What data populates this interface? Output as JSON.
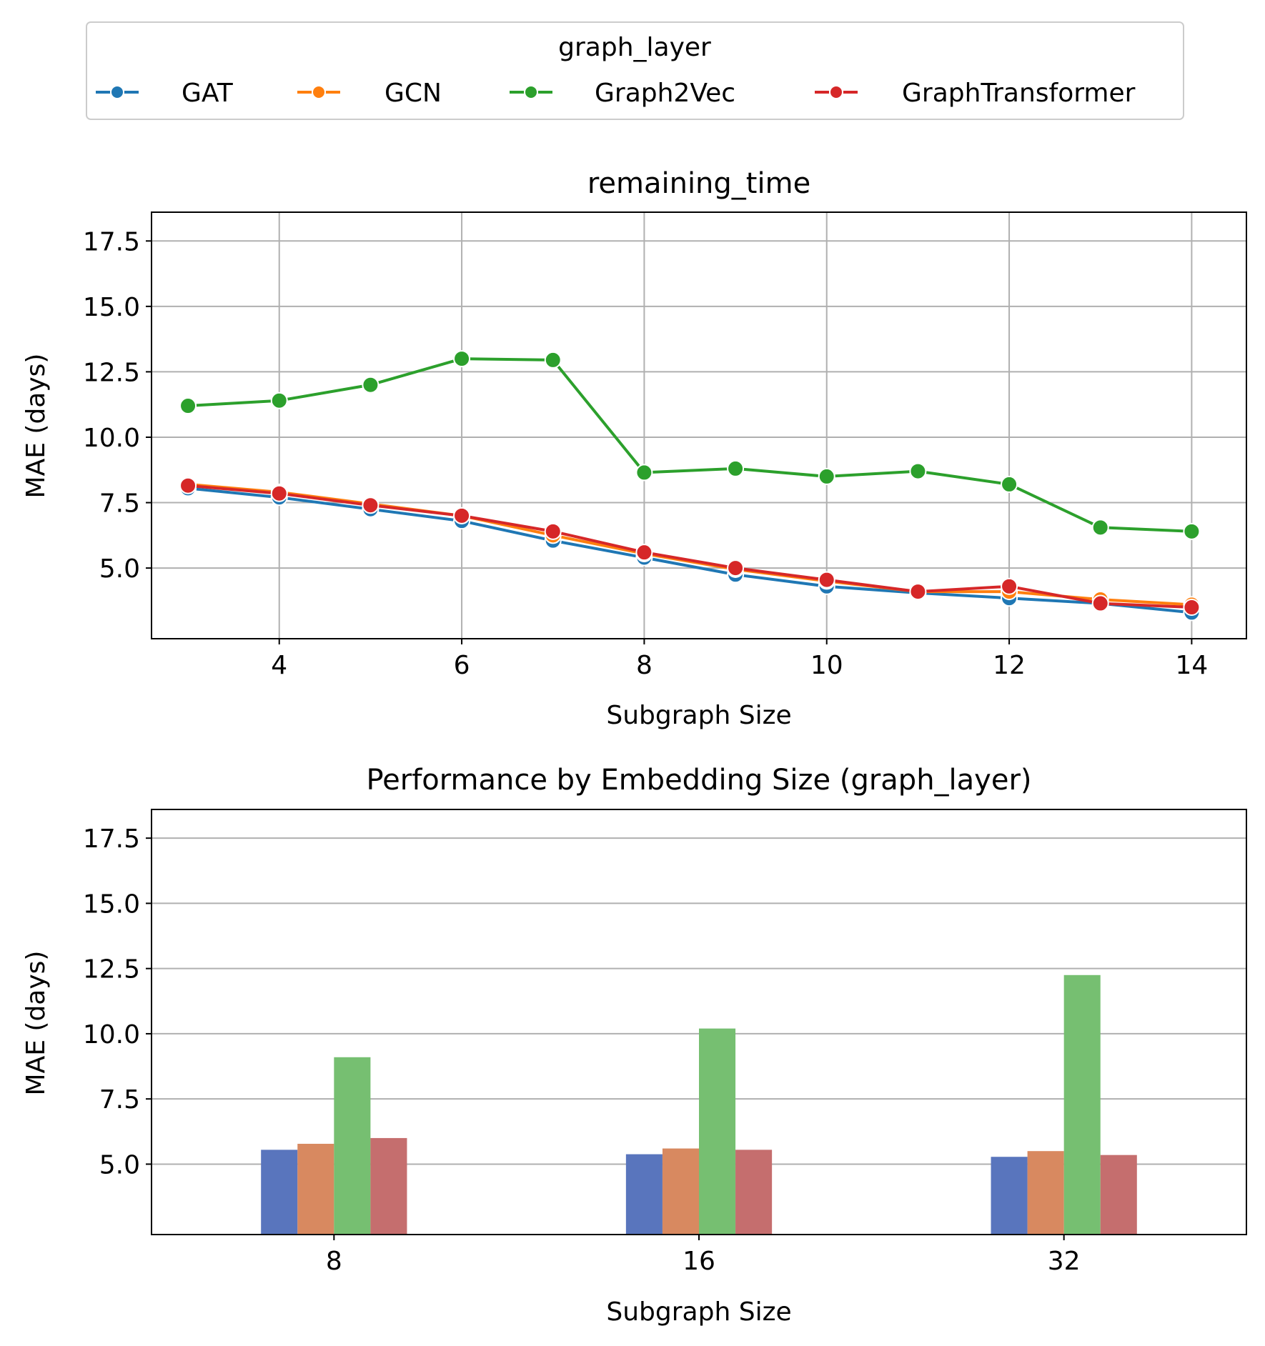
{
  "legend": {
    "title": "graph_layer",
    "entries": [
      {
        "label": "GAT",
        "color": "#1f77b4"
      },
      {
        "label": "GCN",
        "color": "#ff7f0e"
      },
      {
        "label": "Graph2Vec",
        "color": "#2ca02c"
      },
      {
        "label": "GraphTransformer",
        "color": "#d62728"
      }
    ]
  },
  "chart_data": [
    {
      "type": "line",
      "title": "remaining_time",
      "xlabel": "Subgraph Size",
      "ylabel": "MAE (days)",
      "xlim": [
        2.6,
        14.6
      ],
      "ylim": [
        2.3,
        18.6
      ],
      "xticks": [
        "4",
        "6",
        "8",
        "10",
        "12",
        "14"
      ],
      "yticks": [
        "5.0",
        "7.5",
        "10.0",
        "12.5",
        "15.0",
        "17.5"
      ],
      "grid": "both",
      "x": [
        3,
        4,
        5,
        6,
        7,
        8,
        9,
        10,
        11,
        12,
        13,
        14
      ],
      "series": [
        {
          "name": "GAT",
          "color": "#1f77b4",
          "values": [
            8.05,
            7.7,
            7.25,
            6.8,
            6.05,
            5.4,
            4.75,
            4.3,
            4.05,
            3.85,
            3.65,
            3.3
          ]
        },
        {
          "name": "GCN",
          "color": "#ff7f0e",
          "values": [
            8.2,
            7.9,
            7.45,
            7.0,
            6.25,
            5.55,
            4.95,
            4.5,
            4.1,
            4.1,
            3.8,
            3.6
          ]
        },
        {
          "name": "Graph2Vec",
          "color": "#2ca02c",
          "values": [
            11.2,
            11.4,
            12.0,
            13.0,
            12.95,
            8.65,
            8.8,
            8.5,
            8.7,
            8.2,
            6.55,
            6.4
          ]
        },
        {
          "name": "GraphTransformer",
          "color": "#d62728",
          "values": [
            8.15,
            7.85,
            7.4,
            7.0,
            6.4,
            5.6,
            5.0,
            4.55,
            4.1,
            4.3,
            3.65,
            3.5
          ]
        }
      ]
    },
    {
      "type": "bar",
      "title": "Performance by Embedding Size (graph_layer)",
      "xlabel": "Subgraph Size",
      "ylabel": "MAE (days)",
      "ylim": [
        2.3,
        18.6
      ],
      "yticks": [
        "5.0",
        "7.5",
        "10.0",
        "12.5",
        "15.0",
        "17.5"
      ],
      "grid": "y",
      "categories": [
        "8",
        "16",
        "32"
      ],
      "series": [
        {
          "name": "GAT",
          "color": "#5975bd",
          "values": [
            5.55,
            5.38,
            5.28
          ]
        },
        {
          "name": "GCN",
          "color": "#d88960",
          "values": [
            5.78,
            5.6,
            5.5
          ]
        },
        {
          "name": "Graph2Vec",
          "color": "#76bf71",
          "values": [
            9.1,
            10.2,
            12.25
          ]
        },
        {
          "name": "GraphTransformer",
          "color": "#c56e6e",
          "values": [
            6.0,
            5.55,
            5.35
          ]
        }
      ]
    }
  ]
}
